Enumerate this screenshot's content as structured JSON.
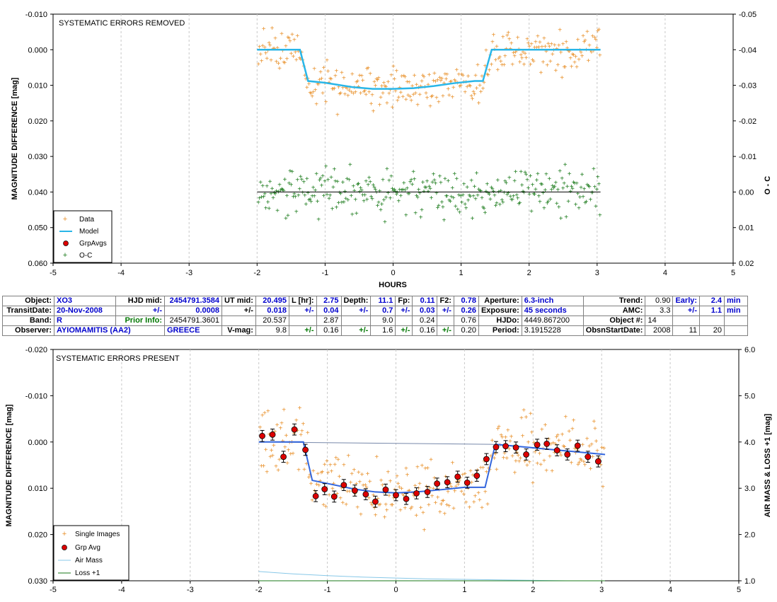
{
  "top": {
    "annotation": "SYSTEMATIC ERRORS REMOVED",
    "xlabel": "HOURS",
    "ylabel": "MAGNITUDE DIFFERENCE [mag]",
    "y2label": "O - C",
    "xticks": [
      "-5",
      "-4",
      "-3",
      "-2",
      "-1",
      "0",
      "1",
      "2",
      "3",
      "4",
      "5"
    ],
    "yticks": [
      "-0.010",
      "0.000",
      "0.010",
      "0.020",
      "0.030",
      "0.040",
      "0.050",
      "0.060"
    ],
    "y2ticks": [
      "-0.05",
      "-0.04",
      "-0.03",
      "-0.02",
      "-0.01",
      "0.00",
      "0.01",
      "0.02"
    ],
    "legend": [
      "Data",
      "Model",
      "GrpAvgs",
      "O-C"
    ]
  },
  "bottom": {
    "annotation": "SYSTEMATIC ERRORS PRESENT",
    "ylabel": "MAGNITUDE DIFFERENCE [mag]",
    "y2label": "AIR MASS & LOSS +1 [mag]",
    "xticks": [
      "-5",
      "-4",
      "-3",
      "-2",
      "-1",
      "0",
      "1",
      "2",
      "3",
      "4",
      "5"
    ],
    "yticks": [
      "-0.020",
      "-0.010",
      "0.000",
      "0.010",
      "0.020",
      "0.030"
    ],
    "y2ticks": [
      "6.0",
      "5.0",
      "4.0",
      "3.0",
      "2.0",
      "1.0"
    ],
    "legend": [
      "Single Images",
      "Grp Avg",
      "Air Mass",
      "Loss +1"
    ]
  },
  "info": {
    "object_label": "Object:",
    "object": "XO3",
    "hjdmid_label": "HJD mid:",
    "hjdmid": "2454791.3584",
    "utmid_label": "UT mid:",
    "utmid": "20.495",
    "l_label": "L [hr]:",
    "l": "2.75",
    "depth_label": "Depth:",
    "depth": "11.1",
    "fp_label": "Fp:",
    "fp": "0.11",
    "f2_label": "F2:",
    "f2": "0.78",
    "aperture_label": "Aperture:",
    "aperture": "6.3-inch",
    "trend_label": "Trend:",
    "trend": "0.90",
    "early_label": "Early:",
    "early": "2.4",
    "early_unit": "min",
    "transitdate_label": "TransitDate:",
    "transitdate": "20-Nov-2008",
    "pm": "+/-",
    "hjdmid_err": "0.0008",
    "utmid_err": "0.018",
    "l_err": "0.04",
    "depth_err": "0.7",
    "fp_err": "0.03",
    "f2_err": "0.26",
    "exposure_label": "Exposure:",
    "exposure": "45 seconds",
    "amc_label": "AMC:",
    "amc": "3.3",
    "early_err": "1.1",
    "early_err_unit": "min",
    "band_label": "Band:",
    "band": "R",
    "prior_label": "Prior Info:",
    "prior_hjd": "2454791.3601",
    "prior_ut": "20.537",
    "prior_l": "2.87",
    "prior_depth": "9.0",
    "prior_fp": "0.24",
    "prior_f2": "0.76",
    "hjdo_label": "HJDo:",
    "hjdo": "4449.867200",
    "objnum_label": "Object #:",
    "objnum": "14",
    "observer_label": "Observer:",
    "observer": "AYIOMAMITIS (AA2)",
    "country": "GREECE",
    "vmag_label": "V-mag:",
    "vmag": "9.8",
    "vmag_err": "0.16",
    "depth_err2": "1.6",
    "fp_err2": "0.16",
    "f2_err2": "0.20",
    "period_label": "Period:",
    "period": "3.1915228",
    "obsstart_label": "ObsnStartDate:",
    "obs_year": "2008",
    "obs_month": "11",
    "obs_day": "20"
  },
  "colors": {
    "data": "#e8902a",
    "model": "#29b6e8",
    "oc": "#1a7a1a",
    "grp": "#dd0000",
    "airmass": "#88c8e8",
    "loss": "#1a7a1a",
    "bottom_model": "#3366dd"
  },
  "chart_data": [
    {
      "type": "scatter",
      "annotation": "SYSTEMATIC ERRORS REMOVED",
      "xlabel": "HOURS",
      "ylabel": "MAGNITUDE DIFFERENCE [mag]",
      "y2label": "O - C",
      "xlim": [
        -5,
        5
      ],
      "ylim": [
        -0.01,
        0.06
      ],
      "y_inverted": true,
      "y2lim": [
        -0.05,
        0.02
      ],
      "series": [
        {
          "name": "Model",
          "x": [
            -2.0,
            -1.37,
            -1.25,
            -1.0,
            -0.6,
            -0.3,
            0.0,
            0.3,
            0.6,
            0.9,
            1.2,
            1.32,
            1.45,
            3.05
          ],
          "y": [
            0.0,
            0.0,
            0.0088,
            0.0093,
            0.0105,
            0.011,
            0.011,
            0.0108,
            0.0102,
            0.0094,
            0.0088,
            0.0088,
            0.0,
            0.0
          ]
        },
        {
          "name": "O-C",
          "note_series_value": 0.0,
          "y2_range": [
            -0.01,
            0.01
          ]
        }
      ]
    },
    {
      "type": "scatter",
      "annotation": "SYSTEMATIC ERRORS PRESENT",
      "ylabel": "MAGNITUDE DIFFERENCE [mag]",
      "y2label": "AIR MASS & LOSS +1 [mag]",
      "xlim": [
        -5,
        5
      ],
      "ylim": [
        -0.02,
        0.03
      ],
      "y_inverted": true,
      "y2lim": [
        1.0,
        6.0
      ],
      "series": [
        {
          "name": "Grp Avg",
          "x": [
            -1.95,
            -1.8,
            -1.64,
            -1.48,
            -1.32,
            -1.17,
            -1.04,
            -0.9,
            -0.76,
            -0.6,
            -0.44,
            -0.3,
            -0.15,
            0.0,
            0.15,
            0.3,
            0.46,
            0.6,
            0.75,
            0.9,
            1.04,
            1.18,
            1.32,
            1.46,
            1.6,
            1.75,
            1.9,
            2.06,
            2.2,
            2.35,
            2.5,
            2.65,
            2.8,
            2.95
          ],
          "y": [
            -0.0013,
            -0.0016,
            0.0032,
            -0.0027,
            0.0017,
            0.0117,
            0.0102,
            0.0118,
            0.0093,
            0.0105,
            0.0113,
            0.0129,
            0.0103,
            0.0115,
            0.0123,
            0.0111,
            0.0108,
            0.009,
            0.0087,
            0.0075,
            0.0088,
            0.0073,
            0.0037,
            0.0011,
            0.0009,
            0.0012,
            0.0027,
            0.0006,
            0.0004,
            0.0018,
            0.0027,
            0.0008,
            0.0032,
            0.0042
          ]
        },
        {
          "name": "Model",
          "x": [
            -2.0,
            -1.35,
            -1.22,
            -0.6,
            -0.3,
            0.0,
            0.3,
            0.6,
            1.0,
            1.3,
            1.45,
            3.05
          ],
          "y": [
            0.0,
            0.0,
            0.0083,
            0.0102,
            0.0108,
            0.011,
            0.0108,
            0.0104,
            0.0098,
            0.0098,
            0.0005,
            0.0027
          ]
        },
        {
          "name": "Air Mass",
          "x": [
            -2.0,
            -1.5,
            -1.0,
            -0.5,
            0.0,
            0.5,
            1.0,
            1.5,
            2.0,
            2.5,
            3.0
          ],
          "y2": [
            1.2,
            1.15,
            1.11,
            1.08,
            1.06,
            1.04,
            1.03,
            1.02,
            1.01,
            1.0,
            1.0
          ]
        },
        {
          "name": "Loss +1",
          "x": [
            -2.0,
            3.05
          ],
          "y2": [
            1.0,
            1.0
          ]
        }
      ]
    }
  ]
}
